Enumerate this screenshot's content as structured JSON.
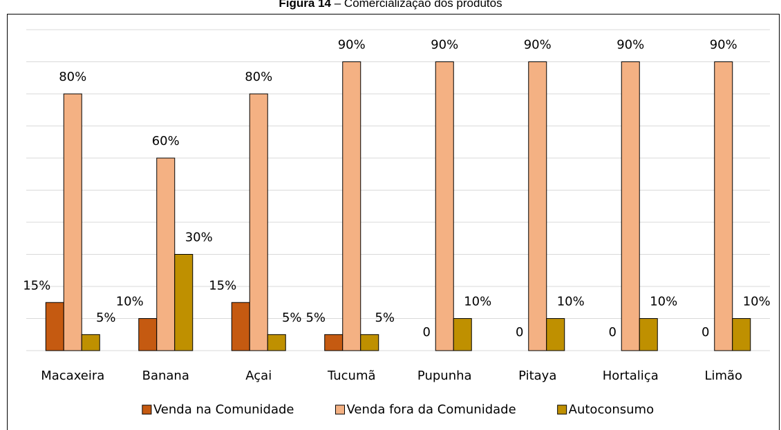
{
  "chart_data": {
    "type": "bar",
    "title_label": "Figura 14",
    "title": "– Comercialização dos produtos",
    "categories": [
      "Macaxeira",
      "Banana",
      "Açai",
      "Tucumã",
      "Pupunha",
      "Pitaya",
      "Hortaliça",
      "Limão"
    ],
    "series": [
      {
        "name": "Venda na Comunidade",
        "color": "#c55a11",
        "values": [
          15,
          10,
          15,
          5,
          0,
          0,
          0,
          0
        ],
        "value_labels": [
          "15%",
          "10%",
          "15%",
          "5%",
          "0",
          "0",
          "0",
          "0"
        ]
      },
      {
        "name": "Venda fora da Comunidade",
        "color": "#f4b183",
        "values": [
          80,
          60,
          80,
          90,
          90,
          90,
          90,
          90
        ],
        "value_labels": [
          "80%",
          "60%",
          "80%",
          "90%",
          "90%",
          "90%",
          "90%",
          "90%"
        ]
      },
      {
        "name": "Autoconsumo",
        "color": "#bf9000",
        "values": [
          5,
          30,
          5,
          5,
          10,
          10,
          10,
          10
        ],
        "value_labels": [
          "5%",
          "30%",
          "5%",
          "5%",
          "10%",
          "10%",
          "10%",
          "10%"
        ]
      }
    ],
    "ylim": [
      0,
      100
    ],
    "yticks": [
      0,
      10,
      20,
      30,
      40,
      50,
      60,
      70,
      80,
      90,
      100
    ],
    "grid": true,
    "legend": "bottom"
  }
}
